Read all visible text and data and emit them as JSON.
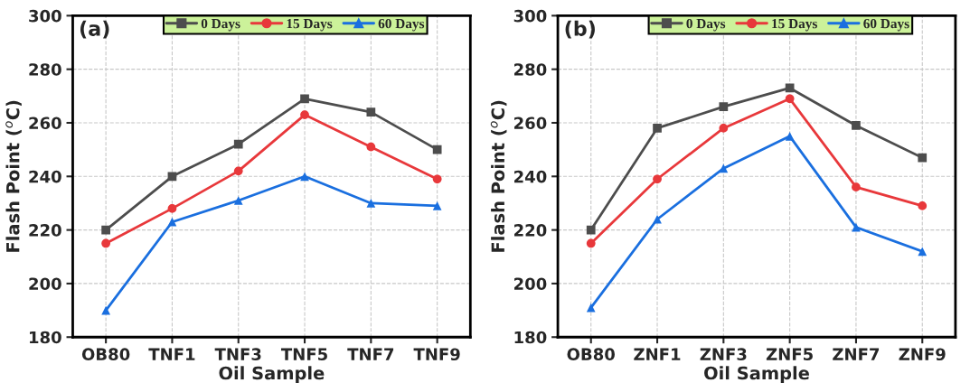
{
  "chart_data": [
    {
      "type": "line",
      "xlabel": "Oil Sample",
      "ylabel": "Flash Point ($^{o}$C)",
      "annotations": [
        "(a)"
      ],
      "categories": [
        "OB80",
        "TNF1",
        "TNF3",
        "TNF5",
        "TNF7",
        "TNF9"
      ],
      "ylim": [
        180,
        300
      ],
      "yticks": [
        180,
        200,
        220,
        240,
        260,
        280,
        300
      ],
      "grid": true,
      "legend": "top",
      "series": [
        {
          "name": "0 Days",
          "color": "#4d4d4d",
          "marker": "square",
          "values": [
            220,
            240,
            252,
            269,
            264,
            250
          ]
        },
        {
          "name": "15 Days",
          "color": "#e8383b",
          "marker": "circle",
          "values": [
            215,
            228,
            242,
            263,
            251,
            239
          ]
        },
        {
          "name": "60 Days",
          "color": "#1a6fdf",
          "marker": "triangle",
          "values": [
            190,
            223,
            231,
            240,
            230,
            229
          ]
        }
      ]
    },
    {
      "type": "line",
      "xlabel": "Oil Sample",
      "ylabel": "Flash Point ($^{o}$C)",
      "annotations": [
        "(b)"
      ],
      "categories": [
        "OB80",
        "ZNF1",
        "ZNF3",
        "ZNF5",
        "ZNF7",
        "ZNF9"
      ],
      "ylim": [
        180,
        300
      ],
      "yticks": [
        180,
        200,
        220,
        240,
        260,
        280,
        300
      ],
      "grid": true,
      "legend": "top",
      "series": [
        {
          "name": "0 Days",
          "color": "#4d4d4d",
          "marker": "square",
          "values": [
            220,
            258,
            266,
            273,
            259,
            247
          ]
        },
        {
          "name": "15 Days",
          "color": "#e8383b",
          "marker": "circle",
          "values": [
            215,
            239,
            258,
            269,
            236,
            229
          ]
        },
        {
          "name": "60 Days",
          "color": "#1a6fdf",
          "marker": "triangle",
          "values": [
            191,
            224,
            243,
            255,
            221,
            212
          ]
        }
      ]
    }
  ]
}
